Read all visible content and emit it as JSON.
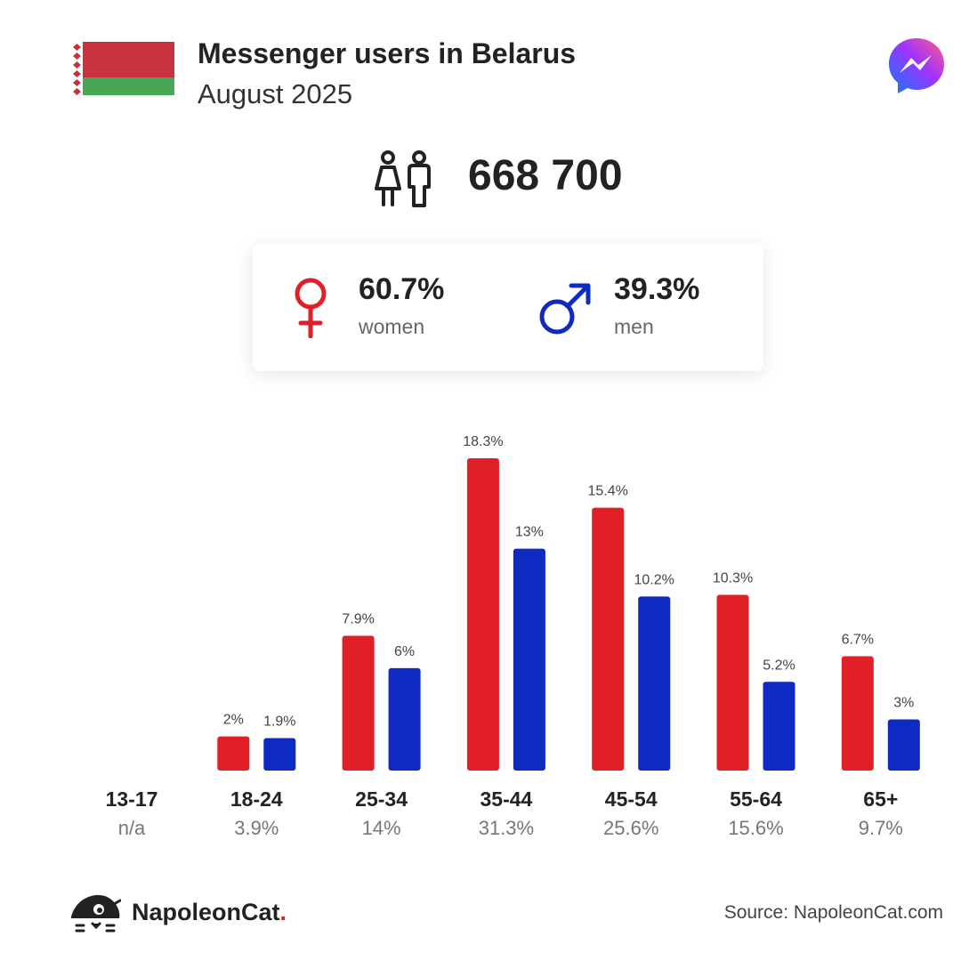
{
  "header": {
    "title": "Messenger users in Belarus",
    "subtitle": "August 2025"
  },
  "icons": {
    "flag": "belarus-flag-icon",
    "logo": "messenger-logo-icon",
    "people": "people-icon",
    "female": "female-symbol-icon",
    "male": "male-symbol-icon",
    "brand": "napoleoncat-logo-icon"
  },
  "colors": {
    "women": "#e01f26",
    "men": "#0e2ac2",
    "flag_red": "#c8313e",
    "flag_green": "#4aa657"
  },
  "total": {
    "value": "668 700"
  },
  "gender": {
    "women_value": "60.7%",
    "women_label": "women",
    "men_value": "39.3%",
    "men_label": "men"
  },
  "chart_data": {
    "type": "bar",
    "categories": [
      "13-17",
      "18-24",
      "25-34",
      "35-44",
      "45-54",
      "55-64",
      "65+"
    ],
    "category_totals": [
      "n/a",
      "3.9%",
      "14%",
      "31.3%",
      "25.6%",
      "15.6%",
      "9.7%"
    ],
    "series": [
      {
        "key": "women",
        "values": [
          null,
          2,
          7.9,
          18.3,
          15.4,
          10.3,
          6.7
        ],
        "labels": [
          "",
          "2%",
          "7.9%",
          "18.3%",
          "15.4%",
          "10.3%",
          "6.7%"
        ],
        "color": "#e01f26"
      },
      {
        "key": "men",
        "values": [
          null,
          1.9,
          6,
          13,
          10.2,
          5.2,
          3
        ],
        "labels": [
          "",
          "1.9%",
          "6%",
          "13%",
          "10.2%",
          "5.2%",
          "3%"
        ],
        "color": "#0e2ac2"
      }
    ],
    "ylim": [
      0,
      18.3
    ],
    "grid": false,
    "legend": "none"
  },
  "footer": {
    "brand_name": "NapoleonCat",
    "brand_dot": ".",
    "source": "Source: NapoleonCat.com"
  }
}
